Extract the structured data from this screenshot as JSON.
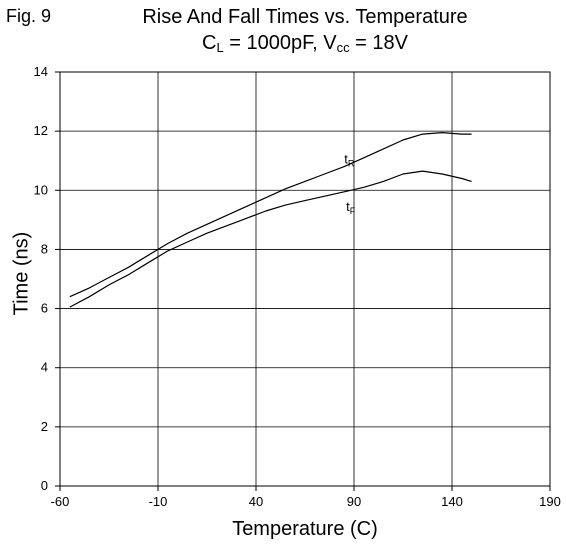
{
  "figure": {
    "label": "Fig. 9",
    "title_line1": "Rise And Fall Times vs. Temperature",
    "title_line2": {
      "c": "C",
      "c_sub": "L",
      "mid": " = 1000pF, V",
      "v_sub": "cc",
      "end": " = 18V"
    }
  },
  "chart_data": {
    "type": "line",
    "xlabel": "Temperature (C)",
    "ylabel": "Time (ns)",
    "xlim": [
      -60,
      190
    ],
    "ylim": [
      0,
      14
    ],
    "xticks": [
      "-60",
      "-10",
      "40",
      "90",
      "140",
      "190"
    ],
    "yticks": [
      "0",
      "2",
      "4",
      "6",
      "8",
      "10",
      "12",
      "14"
    ],
    "grid": true,
    "series": [
      {
        "name": "t",
        "name_sub": "R",
        "x": [
          -55,
          -45,
          -35,
          -25,
          -15,
          -5,
          5,
          15,
          25,
          35,
          45,
          55,
          65,
          75,
          85,
          95,
          105,
          115,
          125,
          135,
          145,
          150
        ],
        "y": [
          6.4,
          6.7,
          7.05,
          7.4,
          7.8,
          8.2,
          8.55,
          8.85,
          9.15,
          9.45,
          9.75,
          10.05,
          10.3,
          10.55,
          10.8,
          11.1,
          11.4,
          11.7,
          11.9,
          11.95,
          11.9,
          11.9
        ]
      },
      {
        "name": "t",
        "name_sub": "F",
        "x": [
          -55,
          -45,
          -35,
          -25,
          -15,
          -5,
          5,
          15,
          25,
          35,
          45,
          55,
          65,
          75,
          85,
          95,
          105,
          115,
          125,
          135,
          145,
          150
        ],
        "y": [
          6.05,
          6.4,
          6.8,
          7.15,
          7.55,
          7.95,
          8.25,
          8.55,
          8.8,
          9.05,
          9.3,
          9.5,
          9.65,
          9.8,
          9.95,
          10.1,
          10.3,
          10.55,
          10.65,
          10.55,
          10.4,
          10.3
        ]
      }
    ],
    "series_labels": [
      {
        "series": 0,
        "x": 85,
        "y": 10.9
      },
      {
        "series": 1,
        "x": 86,
        "y": 9.3
      }
    ],
    "line_color": "#000000",
    "grid_color": "#000000"
  }
}
